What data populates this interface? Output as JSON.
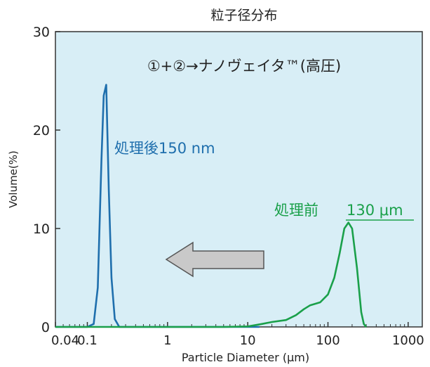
{
  "chart_data": {
    "type": "line",
    "title": "粒子径分布",
    "xlabel": "Particle Diameter (μm)",
    "ylabel": "Volume(%)",
    "x_scale": "log",
    "xlim": [
      0.04,
      1500
    ],
    "ylim": [
      0,
      30
    ],
    "x_ticks": [
      0.04,
      0.1,
      1,
      10,
      100,
      1000
    ],
    "x_tick_labels": [
      "0.04",
      "0.1",
      "1",
      "10",
      "100",
      "1000"
    ],
    "y_ticks": [
      0,
      10,
      20,
      30
    ],
    "y_tick_labels": [
      "0",
      "10",
      "20",
      "30"
    ],
    "grid": false,
    "background_color": "#d8eef6",
    "annotation": "①+②→ナノヴェイタ™(高圧)",
    "series": [
      {
        "name": "処理後150 nm",
        "color": "#1f6fad",
        "points": [
          [
            0.04,
            0
          ],
          [
            0.1,
            0
          ],
          [
            0.12,
            0.3
          ],
          [
            0.135,
            4
          ],
          [
            0.15,
            17
          ],
          [
            0.16,
            23.5
          ],
          [
            0.172,
            24.6
          ],
          [
            0.185,
            14
          ],
          [
            0.2,
            5
          ],
          [
            0.22,
            0.8
          ],
          [
            0.25,
            0
          ],
          [
            0.6,
            0
          ],
          [
            2,
            0
          ],
          [
            14,
            0
          ]
        ]
      },
      {
        "name": "処理前 130 μm",
        "color": "#1aa04a",
        "points": [
          [
            0.04,
            0
          ],
          [
            1,
            0
          ],
          [
            5,
            0
          ],
          [
            10,
            0.05
          ],
          [
            15,
            0.3
          ],
          [
            20,
            0.5
          ],
          [
            30,
            0.7
          ],
          [
            40,
            1.2
          ],
          [
            50,
            1.8
          ],
          [
            60,
            2.2
          ],
          [
            80,
            2.5
          ],
          [
            100,
            3.3
          ],
          [
            120,
            5
          ],
          [
            140,
            7.5
          ],
          [
            160,
            10
          ],
          [
            180,
            10.6
          ],
          [
            200,
            10
          ],
          [
            230,
            6
          ],
          [
            260,
            1.5
          ],
          [
            280,
            0.3
          ],
          [
            300,
            0
          ]
        ]
      }
    ],
    "labels": {
      "after": "処理後150 nm",
      "before_prefix": "処理前",
      "before_value": "130 μm"
    }
  }
}
